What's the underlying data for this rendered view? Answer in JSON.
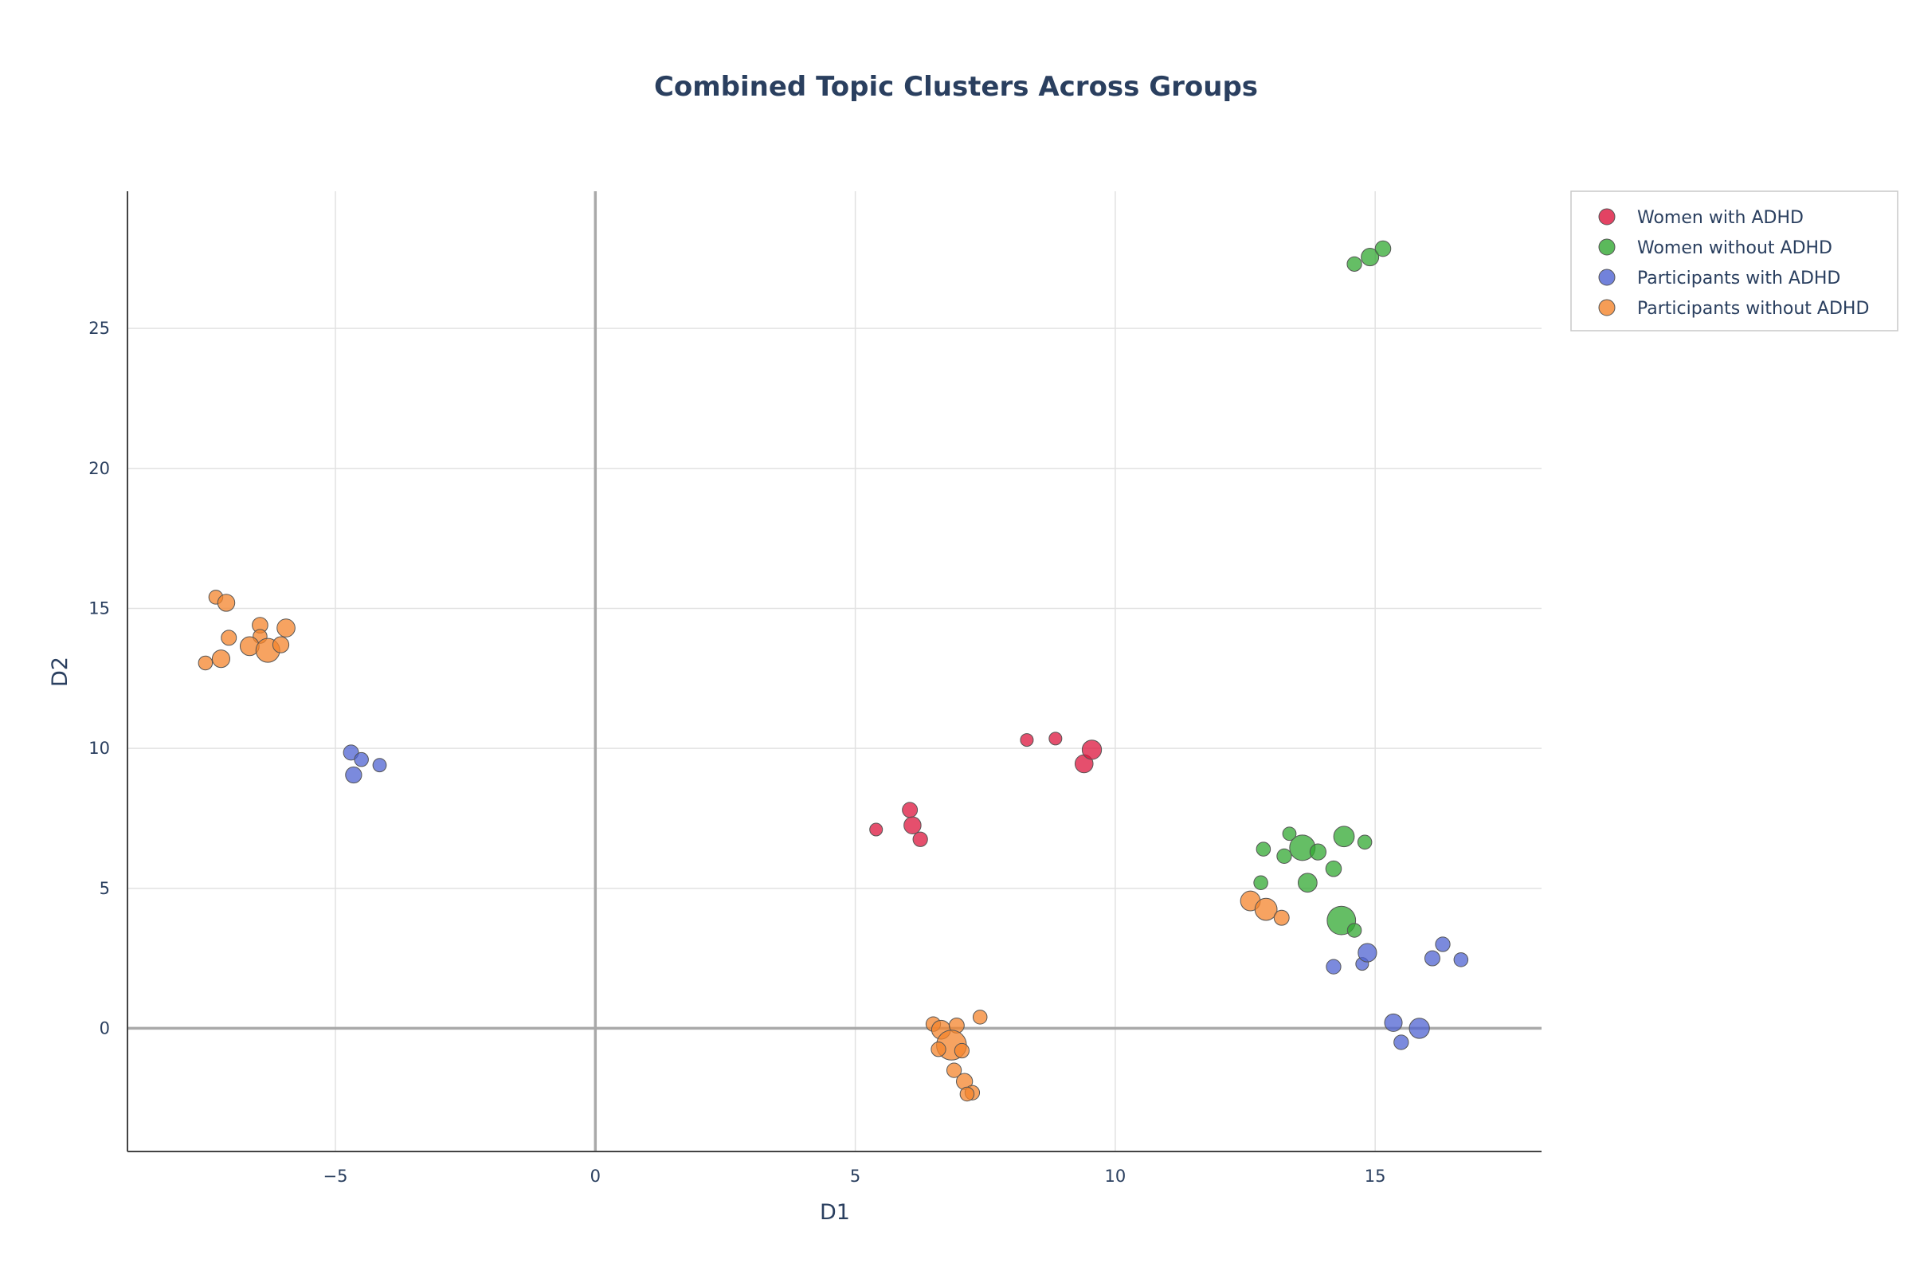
{
  "chart_data": {
    "type": "scatter",
    "title": "Combined Topic Clusters Across Groups",
    "xlabel": "D1",
    "ylabel": "D2",
    "xlim": [
      -9,
      18.2
    ],
    "ylim": [
      -4.4,
      29.9
    ],
    "xticks": [
      -5,
      0,
      5,
      10,
      15
    ],
    "xtick_labels": [
      "−5",
      "0",
      "5",
      "10",
      "15"
    ],
    "yticks": [
      0,
      5,
      10,
      15,
      20,
      25
    ],
    "ytick_labels": [
      "0",
      "5",
      "10",
      "15",
      "20",
      "25"
    ],
    "grid": true,
    "zero_lines": true,
    "legend_position": "top-right outside plot",
    "series": [
      {
        "name": "Women with ADHD",
        "color": "#dc143c",
        "points": [
          {
            "x": 5.4,
            "y": 7.1,
            "size": 1
          },
          {
            "x": 6.05,
            "y": 7.8,
            "size": 1.4
          },
          {
            "x": 6.1,
            "y": 7.25,
            "size": 1.8
          },
          {
            "x": 6.25,
            "y": 6.75,
            "size": 1.3
          },
          {
            "x": 8.3,
            "y": 10.3,
            "size": 1
          },
          {
            "x": 8.85,
            "y": 10.35,
            "size": 1
          },
          {
            "x": 9.4,
            "y": 9.45,
            "size": 2
          },
          {
            "x": 9.55,
            "y": 9.95,
            "size": 2.3
          }
        ]
      },
      {
        "name": "Women without ADHD",
        "color": "#32a832",
        "points": [
          {
            "x": 14.6,
            "y": 27.3,
            "size": 1.3
          },
          {
            "x": 14.9,
            "y": 27.55,
            "size": 1.9
          },
          {
            "x": 15.15,
            "y": 27.85,
            "size": 1.5
          },
          {
            "x": 12.85,
            "y": 6.4,
            "size": 1.2
          },
          {
            "x": 13.35,
            "y": 6.95,
            "size": 1.1
          },
          {
            "x": 13.25,
            "y": 6.15,
            "size": 1.3
          },
          {
            "x": 13.6,
            "y": 6.45,
            "size": 4
          },
          {
            "x": 13.9,
            "y": 6.3,
            "size": 1.6
          },
          {
            "x": 14.4,
            "y": 6.85,
            "size": 2.6
          },
          {
            "x": 14.8,
            "y": 6.65,
            "size": 1.2
          },
          {
            "x": 14.2,
            "y": 5.7,
            "size": 1.5
          },
          {
            "x": 12.8,
            "y": 5.2,
            "size": 1.2
          },
          {
            "x": 13.7,
            "y": 5.2,
            "size": 2.2
          },
          {
            "x": 14.35,
            "y": 3.85,
            "size": 5
          },
          {
            "x": 14.6,
            "y": 3.5,
            "size": 1.2
          }
        ]
      },
      {
        "name": "Participants with ADHD",
        "color": "#4f63d2",
        "points": [
          {
            "x": -4.7,
            "y": 9.85,
            "size": 1.4
          },
          {
            "x": -4.5,
            "y": 9.6,
            "size": 1.2
          },
          {
            "x": -4.65,
            "y": 9.05,
            "size": 1.6
          },
          {
            "x": -4.15,
            "y": 9.4,
            "size": 1.1
          },
          {
            "x": 14.2,
            "y": 2.2,
            "size": 1.3
          },
          {
            "x": 14.75,
            "y": 2.3,
            "size": 1
          },
          {
            "x": 14.85,
            "y": 2.7,
            "size": 2.1
          },
          {
            "x": 16.1,
            "y": 2.5,
            "size": 1.4
          },
          {
            "x": 16.3,
            "y": 3,
            "size": 1.3
          },
          {
            "x": 16.65,
            "y": 2.45,
            "size": 1.2
          },
          {
            "x": 15.35,
            "y": 0.2,
            "size": 1.9
          },
          {
            "x": 15.85,
            "y": 0,
            "size": 2.5
          },
          {
            "x": 15.5,
            "y": -0.5,
            "size": 1.3
          }
        ]
      },
      {
        "name": "Participants without ADHD",
        "color": "#f4842c",
        "points": [
          {
            "x": -7.3,
            "y": 15.4,
            "size": 1.2
          },
          {
            "x": -7.1,
            "y": 15.2,
            "size": 1.8
          },
          {
            "x": -7.05,
            "y": 13.95,
            "size": 1.4
          },
          {
            "x": -7.2,
            "y": 13.2,
            "size": 1.9
          },
          {
            "x": -7.5,
            "y": 13.05,
            "size": 1.2
          },
          {
            "x": -6.45,
            "y": 14.4,
            "size": 1.5
          },
          {
            "x": -6.45,
            "y": 14,
            "size": 1.2
          },
          {
            "x": -6.65,
            "y": 13.65,
            "size": 2.2
          },
          {
            "x": -6.3,
            "y": 13.5,
            "size": 3.5
          },
          {
            "x": -6.05,
            "y": 13.7,
            "size": 1.6
          },
          {
            "x": -5.95,
            "y": 14.3,
            "size": 2
          },
          {
            "x": 12.6,
            "y": 4.55,
            "size": 2.4
          },
          {
            "x": 12.9,
            "y": 4.25,
            "size": 3
          },
          {
            "x": 13.2,
            "y": 3.95,
            "size": 1.4
          },
          {
            "x": 6.5,
            "y": 0.15,
            "size": 1.3
          },
          {
            "x": 6.65,
            "y": -0.05,
            "size": 2.2
          },
          {
            "x": 6.95,
            "y": 0.1,
            "size": 1.4
          },
          {
            "x": 7.4,
            "y": 0.4,
            "size": 1.2
          },
          {
            "x": 6.85,
            "y": -0.6,
            "size": 5.5
          },
          {
            "x": 6.6,
            "y": -0.75,
            "size": 1.3
          },
          {
            "x": 7.05,
            "y": -0.8,
            "size": 1.3
          },
          {
            "x": 6.9,
            "y": -1.5,
            "size": 1.3
          },
          {
            "x": 7.1,
            "y": -1.9,
            "size": 1.6
          },
          {
            "x": 7.25,
            "y": -2.3,
            "size": 1.3
          },
          {
            "x": 7.15,
            "y": -2.35,
            "size": 1.2
          }
        ]
      }
    ]
  }
}
